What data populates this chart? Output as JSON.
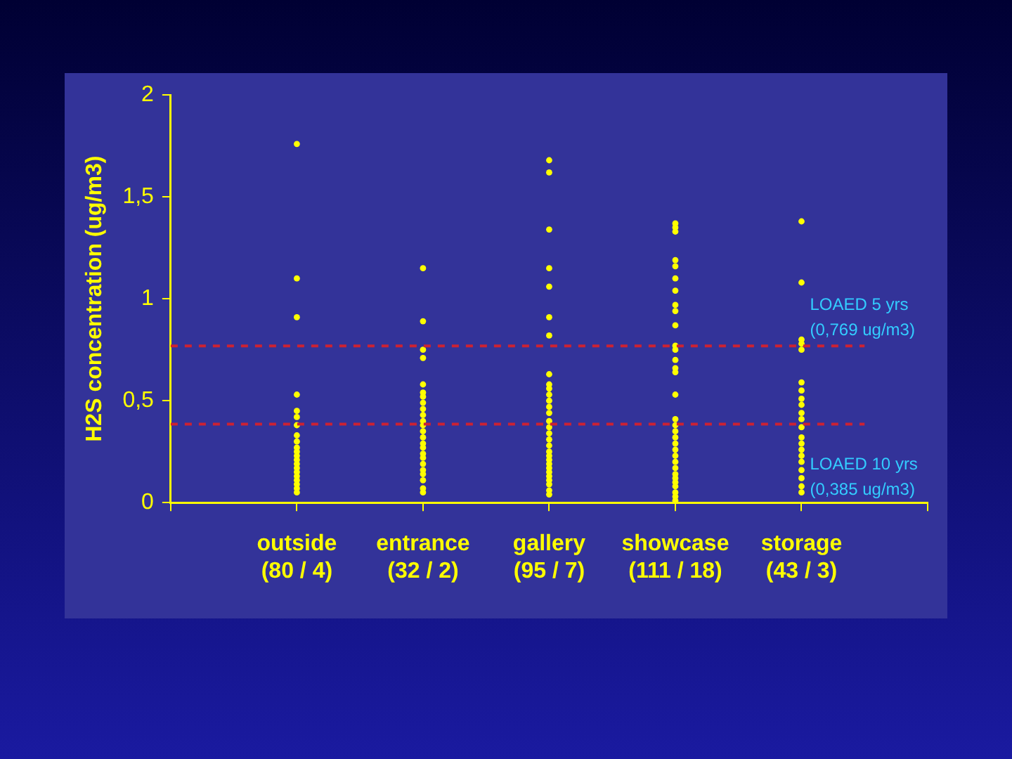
{
  "chart_data": {
    "type": "scatter",
    "ylabel": "H2S concentration (ug/m3)",
    "categories": [
      "outside\n(80 / 4)",
      "entrance\n(32 / 2)",
      "gallery\n(95 / 7)",
      "showcase\n(111 / 18)",
      "storage\n(43 / 3)"
    ],
    "ylim": [
      0,
      2
    ],
    "yticks": [
      0,
      {
        "value": 0.5,
        "label": "0,5"
      },
      1,
      {
        "value": 1.5,
        "label": "1,5"
      },
      2
    ],
    "marker": "circle",
    "grid": false,
    "legend": false,
    "ref_lines": [
      {
        "axis": "y",
        "value": 0.769,
        "label": "LOAED 5 yrs\n(0,769 ug/m3)",
        "color": "#cc2233",
        "line_style": "dashed"
      },
      {
        "axis": "y",
        "value": 0.385,
        "label": "LOAED 10 yrs\n(0,385 ug/m3)",
        "color": "#cc2233",
        "line_style": "dashed"
      }
    ],
    "series": [
      {
        "color": "#ffff00",
        "x": [
          "outside\n(80 / 4)",
          "outside\n(80 / 4)",
          "outside\n(80 / 4)",
          "outside\n(80 / 4)",
          "outside\n(80 / 4)",
          "outside\n(80 / 4)",
          "outside\n(80 / 4)",
          "outside\n(80 / 4)",
          "outside\n(80 / 4)",
          "outside\n(80 / 4)",
          "outside\n(80 / 4)",
          "outside\n(80 / 4)",
          "outside\n(80 / 4)",
          "outside\n(80 / 4)",
          "outside\n(80 / 4)",
          "outside\n(80 / 4)",
          "outside\n(80 / 4)",
          "outside\n(80 / 4)",
          "outside\n(80 / 4)",
          "outside\n(80 / 4)",
          "outside\n(80 / 4)"
        ],
        "values": [
          1.76,
          1.1,
          0.91,
          0.53,
          0.45,
          0.42,
          0.38,
          0.33,
          0.3,
          0.27,
          0.25,
          0.23,
          0.21,
          0.19,
          0.17,
          0.15,
          0.13,
          0.11,
          0.09,
          0.07,
          0.05
        ]
      },
      {
        "color": "#ffff00",
        "x": [
          "entrance\n(32 / 2)",
          "entrance\n(32 / 2)",
          "entrance\n(32 / 2)",
          "entrance\n(32 / 2)",
          "entrance\n(32 / 2)",
          "entrance\n(32 / 2)",
          "entrance\n(32 / 2)",
          "entrance\n(32 / 2)",
          "entrance\n(32 / 2)",
          "entrance\n(32 / 2)",
          "entrance\n(32 / 2)",
          "entrance\n(32 / 2)",
          "entrance\n(32 / 2)",
          "entrance\n(32 / 2)",
          "entrance\n(32 / 2)",
          "entrance\n(32 / 2)",
          "entrance\n(32 / 2)",
          "entrance\n(32 / 2)",
          "entrance\n(32 / 2)",
          "entrance\n(32 / 2)",
          "entrance\n(32 / 2)",
          "entrance\n(32 / 2)",
          "entrance\n(32 / 2)",
          "entrance\n(32 / 2)"
        ],
        "values": [
          1.15,
          0.89,
          0.75,
          0.71,
          0.58,
          0.54,
          0.52,
          0.49,
          0.46,
          0.43,
          0.4,
          0.38,
          0.35,
          0.32,
          0.29,
          0.27,
          0.24,
          0.22,
          0.19,
          0.16,
          0.14,
          0.11,
          0.07,
          0.05
        ]
      },
      {
        "color": "#ffff00",
        "x": [
          "gallery\n(95 / 7)",
          "gallery\n(95 / 7)",
          "gallery\n(95 / 7)",
          "gallery\n(95 / 7)",
          "gallery\n(95 / 7)",
          "gallery\n(95 / 7)",
          "gallery\n(95 / 7)",
          "gallery\n(95 / 7)",
          "gallery\n(95 / 7)",
          "gallery\n(95 / 7)",
          "gallery\n(95 / 7)",
          "gallery\n(95 / 7)",
          "gallery\n(95 / 7)",
          "gallery\n(95 / 7)",
          "gallery\n(95 / 7)",
          "gallery\n(95 / 7)",
          "gallery\n(95 / 7)",
          "gallery\n(95 / 7)",
          "gallery\n(95 / 7)",
          "gallery\n(95 / 7)",
          "gallery\n(95 / 7)",
          "gallery\n(95 / 7)",
          "gallery\n(95 / 7)",
          "gallery\n(95 / 7)",
          "gallery\n(95 / 7)",
          "gallery\n(95 / 7)",
          "gallery\n(95 / 7)",
          "gallery\n(95 / 7)",
          "gallery\n(95 / 7)",
          "gallery\n(95 / 7)"
        ],
        "values": [
          1.68,
          1.62,
          1.34,
          1.15,
          1.06,
          0.91,
          0.82,
          0.63,
          0.58,
          0.56,
          0.53,
          0.5,
          0.47,
          0.44,
          0.4,
          0.37,
          0.34,
          0.31,
          0.28,
          0.25,
          0.23,
          0.21,
          0.19,
          0.17,
          0.15,
          0.13,
          0.11,
          0.09,
          0.06,
          0.04
        ]
      },
      {
        "color": "#ffff00",
        "x": [
          "showcase\n(111 / 18)",
          "showcase\n(111 / 18)",
          "showcase\n(111 / 18)",
          "showcase\n(111 / 18)",
          "showcase\n(111 / 18)",
          "showcase\n(111 / 18)",
          "showcase\n(111 / 18)",
          "showcase\n(111 / 18)",
          "showcase\n(111 / 18)",
          "showcase\n(111 / 18)",
          "showcase\n(111 / 18)",
          "showcase\n(111 / 18)",
          "showcase\n(111 / 18)",
          "showcase\n(111 / 18)",
          "showcase\n(111 / 18)",
          "showcase\n(111 / 18)",
          "showcase\n(111 / 18)",
          "showcase\n(111 / 18)",
          "showcase\n(111 / 18)",
          "showcase\n(111 / 18)",
          "showcase\n(111 / 18)",
          "showcase\n(111 / 18)",
          "showcase\n(111 / 18)",
          "showcase\n(111 / 18)",
          "showcase\n(111 / 18)",
          "showcase\n(111 / 18)",
          "showcase\n(111 / 18)",
          "showcase\n(111 / 18)",
          "showcase\n(111 / 18)",
          "showcase\n(111 / 18)",
          "showcase\n(111 / 18)",
          "showcase\n(111 / 18)"
        ],
        "values": [
          1.37,
          1.35,
          1.33,
          1.19,
          1.16,
          1.1,
          1.04,
          0.97,
          0.94,
          0.87,
          0.77,
          0.75,
          0.7,
          0.66,
          0.64,
          0.53,
          0.41,
          0.38,
          0.35,
          0.32,
          0.29,
          0.26,
          0.23,
          0.2,
          0.17,
          0.14,
          0.12,
          0.1,
          0.08,
          0.05,
          0.03,
          0.01
        ]
      },
      {
        "color": "#ffff00",
        "x": [
          "storage\n(43 / 3)",
          "storage\n(43 / 3)",
          "storage\n(43 / 3)",
          "storage\n(43 / 3)",
          "storage\n(43 / 3)",
          "storage\n(43 / 3)",
          "storage\n(43 / 3)",
          "storage\n(43 / 3)",
          "storage\n(43 / 3)",
          "storage\n(43 / 3)",
          "storage\n(43 / 3)",
          "storage\n(43 / 3)",
          "storage\n(43 / 3)",
          "storage\n(43 / 3)",
          "storage\n(43 / 3)",
          "storage\n(43 / 3)",
          "storage\n(43 / 3)",
          "storage\n(43 / 3)",
          "storage\n(43 / 3)",
          "storage\n(43 / 3)",
          "storage\n(43 / 3)"
        ],
        "values": [
          1.38,
          1.08,
          0.8,
          0.78,
          0.75,
          0.59,
          0.55,
          0.51,
          0.48,
          0.44,
          0.41,
          0.37,
          0.32,
          0.29,
          0.26,
          0.23,
          0.2,
          0.16,
          0.12,
          0.08,
          0.05
        ]
      }
    ]
  }
}
